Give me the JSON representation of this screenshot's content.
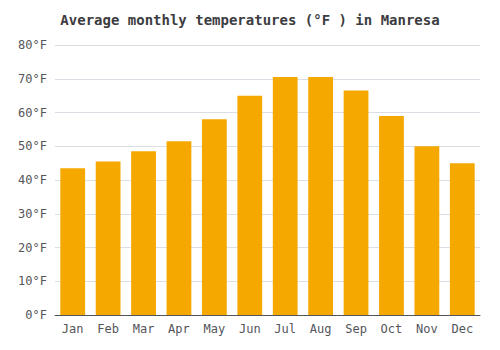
{
  "chart_data": {
    "type": "bar",
    "title": "Average monthly temperatures (°F ) in Manresa",
    "categories": [
      "Jan",
      "Feb",
      "Mar",
      "Apr",
      "May",
      "Jun",
      "Jul",
      "Aug",
      "Sep",
      "Oct",
      "Nov",
      "Dec"
    ],
    "values": [
      43.5,
      45.5,
      48.5,
      51.5,
      58,
      65,
      70.5,
      70.5,
      66.5,
      59,
      50,
      45
    ],
    "color": "#F5A800",
    "ylim": [
      0,
      80
    ],
    "yticks": [
      {
        "value": 0,
        "label": "0°F"
      },
      {
        "value": 10,
        "label": "10°F"
      },
      {
        "value": 20,
        "label": "20°F"
      },
      {
        "value": 30,
        "label": "30°F"
      },
      {
        "value": 40,
        "label": "40°F"
      },
      {
        "value": 50,
        "label": "50°F"
      },
      {
        "value": 60,
        "label": "60°F"
      },
      {
        "value": 70,
        "label": "70°F"
      },
      {
        "value": 80,
        "label": "80°F"
      }
    ],
    "grid": true
  }
}
